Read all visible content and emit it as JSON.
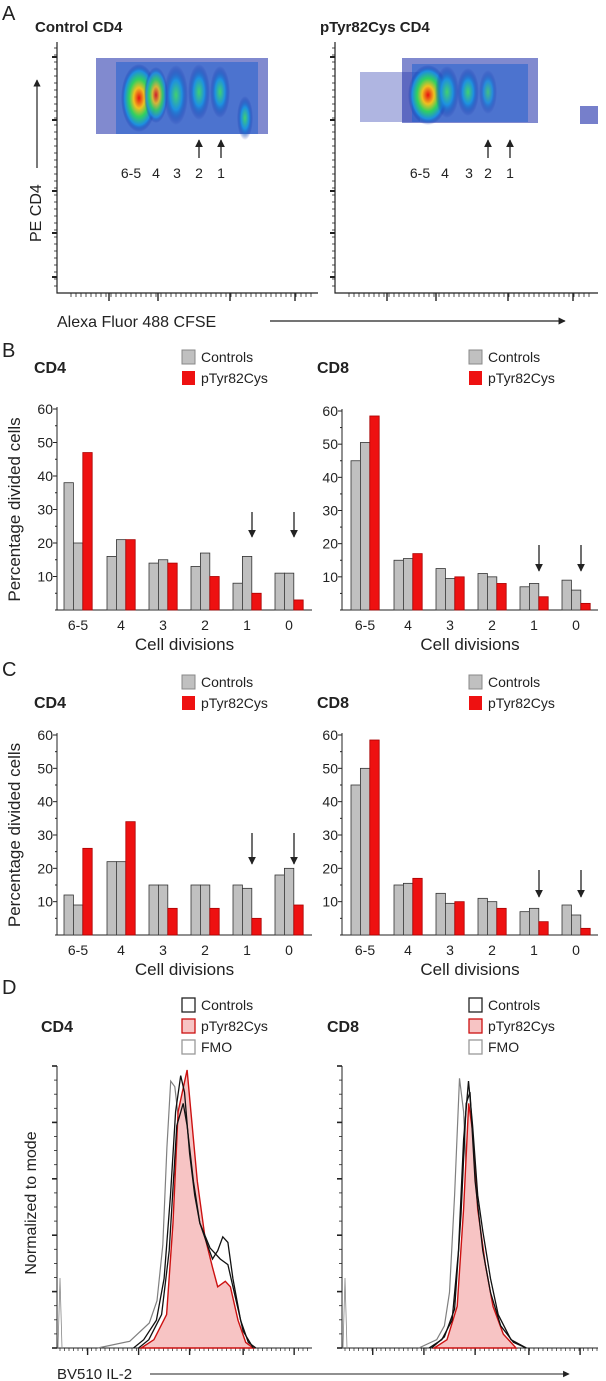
{
  "panel_letters": {
    "a": "A",
    "b": "B",
    "c": "C",
    "d": "D"
  },
  "colors": {
    "control": "#c0c0c0",
    "mutant": "#ee1111",
    "fmo": "#808080",
    "mutant_fill": "#f7c4c4",
    "mutant_line": "#cc1111",
    "axis": "#222222"
  },
  "panel_a": {
    "left_title": "Control CD4",
    "right_title": "pTyr82Cys CD4",
    "ylabel": "PE CD4",
    "xlabel": "Alexa Fluor 488 CFSE",
    "left_peaks": [
      "6-5",
      "4",
      "3",
      "2",
      "1"
    ],
    "right_peaks": [
      "6-5",
      "4",
      "3",
      "2",
      "1"
    ]
  },
  "chart_data": [
    {
      "id": "B-CD4",
      "type": "bar",
      "title": "CD4",
      "xlabel": "Cell divisions",
      "ylabel": "Percentage  divided cells",
      "ylim": [
        0,
        60
      ],
      "yticks": [
        "10",
        "20",
        "30",
        "40",
        "50",
        "60"
      ],
      "categories": [
        "6-5",
        "4",
        "3",
        "2",
        "1",
        "0"
      ],
      "legend": [
        "Controls",
        "pTyr82Cys"
      ],
      "legend_placement": "top-right",
      "series": [
        {
          "name": "Controls",
          "values": [
            38,
            16,
            14,
            13,
            8,
            11
          ]
        },
        {
          "name": "Controls",
          "values": [
            20,
            21,
            15,
            17,
            16,
            11
          ]
        },
        {
          "name": "pTyr82Cys",
          "values": [
            47,
            21,
            14,
            10,
            5,
            3
          ]
        }
      ],
      "arrows_at": [
        "1",
        "0"
      ]
    },
    {
      "id": "B-CD8",
      "type": "bar",
      "title": "CD8",
      "xlabel": "Cell divisions",
      "ylabel": "",
      "ylim": [
        0,
        60
      ],
      "yticks": [
        "10",
        "20",
        "30",
        "40",
        "50",
        "60"
      ],
      "categories": [
        "6-5",
        "4",
        "3",
        "2",
        "1",
        "0"
      ],
      "legend": [
        "Controls",
        "pTyr82Cys"
      ],
      "legend_placement": "top-right",
      "series": [
        {
          "name": "Controls",
          "values": [
            45,
            15,
            12.5,
            11,
            7,
            9
          ]
        },
        {
          "name": "Controls",
          "values": [
            50.5,
            15.5,
            9.5,
            10,
            8,
            6
          ]
        },
        {
          "name": "pTyr82Cys",
          "values": [
            58.5,
            17,
            10,
            8,
            4,
            2
          ]
        }
      ],
      "arrows_at": [
        "1",
        "0"
      ]
    },
    {
      "id": "C-CD4",
      "type": "bar",
      "title": "CD4",
      "xlabel": "Cell divisions",
      "ylabel": "Percentage  divided cells",
      "ylim": [
        0,
        60
      ],
      "yticks": [
        "10",
        "20",
        "30",
        "40",
        "50",
        "60"
      ],
      "categories": [
        "6-5",
        "4",
        "3",
        "2",
        "1",
        "0"
      ],
      "legend": [
        "Controls",
        "pTyr82Cys"
      ],
      "legend_placement": "top-right",
      "series": [
        {
          "name": "Controls",
          "values": [
            12,
            22,
            15,
            15,
            15,
            18
          ]
        },
        {
          "name": "Controls",
          "values": [
            9,
            22,
            15,
            15,
            14,
            20
          ]
        },
        {
          "name": "pTyr82Cys",
          "values": [
            26,
            34,
            8,
            8,
            5,
            9
          ]
        }
      ],
      "arrows_at": [
        "1",
        "0"
      ]
    },
    {
      "id": "C-CD8",
      "type": "bar",
      "title": "CD8",
      "xlabel": "Cell divisions",
      "ylabel": "",
      "ylim": [
        0,
        60
      ],
      "yticks": [
        "10",
        "20",
        "30",
        "40",
        "50",
        "60"
      ],
      "categories": [
        "6-5",
        "4",
        "3",
        "2",
        "1",
        "0"
      ],
      "legend": [
        "Controls",
        "pTyr82Cys"
      ],
      "legend_placement": "top-right",
      "series": [
        {
          "name": "Controls",
          "values": [
            45,
            15,
            12.5,
            11,
            7,
            9
          ]
        },
        {
          "name": "Controls",
          "values": [
            50,
            15.5,
            9.5,
            10,
            8,
            6
          ]
        },
        {
          "name": "pTyr82Cys",
          "values": [
            58.5,
            17,
            10,
            8,
            4,
            2
          ]
        }
      ],
      "arrows_at": [
        "1",
        "0"
      ]
    },
    {
      "id": "D-CD4",
      "type": "line",
      "title": "CD4",
      "xlabel": "BV510 IL-2",
      "ylabel": "Normalized to mode",
      "xlim": [
        0,
        100
      ],
      "ylim": [
        0,
        100
      ],
      "legend": [
        "Controls",
        "pTyr82Cys",
        "FMO"
      ],
      "legend_placement": "top-right",
      "series": [
        {
          "name": "FMO",
          "style": "fmo",
          "points": [
            [
              16,
              0
            ],
            [
              28.5,
              2.4
            ],
            [
              36.2,
              9
            ],
            [
              39.2,
              17
            ],
            [
              41.5,
              37
            ],
            [
              43.1,
              72
            ],
            [
              44.6,
              96
            ],
            [
              46.2,
              94
            ],
            [
              47.7,
              82
            ],
            [
              49.2,
              60
            ],
            [
              50.8,
              37
            ],
            [
              53.1,
              19
            ],
            [
              56.2,
              13
            ],
            [
              60,
              11
            ],
            [
              61.5,
              8
            ],
            [
              66.9,
              2.4
            ],
            [
              73,
              0
            ]
          ]
        },
        {
          "name": "pTyr82Cys",
          "style": "mutant",
          "points": [
            [
              33,
              0
            ],
            [
              38,
              3
            ],
            [
              43,
              12
            ],
            [
              45.5,
              45
            ],
            [
              47.5,
              85
            ],
            [
              51,
              100
            ],
            [
              52.5,
              85
            ],
            [
              55,
              60
            ],
            [
              58,
              40
            ],
            [
              61,
              29
            ],
            [
              63,
              22
            ],
            [
              66,
              24
            ],
            [
              68,
              22
            ],
            [
              71,
              10
            ],
            [
              74,
              2
            ],
            [
              77,
              0
            ]
          ]
        },
        {
          "name": "Controls",
          "style": "control",
          "points": [
            [
              30,
              0
            ],
            [
              34,
              3
            ],
            [
              39,
              10
            ],
            [
              42,
              25
            ],
            [
              44.5,
              55
            ],
            [
              46.5,
              85
            ],
            [
              48.5,
              98
            ],
            [
              50,
              92
            ],
            [
              52,
              70
            ],
            [
              54,
              55
            ],
            [
              56,
              45
            ],
            [
              59,
              37
            ],
            [
              61,
              32
            ],
            [
              63,
              35
            ],
            [
              65,
              40
            ],
            [
              67,
              38
            ],
            [
              69,
              25
            ],
            [
              72,
              10
            ],
            [
              75,
              2
            ],
            [
              78,
              0
            ]
          ]
        },
        {
          "name": "Controls",
          "style": "control",
          "points": [
            [
              32,
              0
            ],
            [
              36,
              3
            ],
            [
              41,
              12
            ],
            [
              44,
              35
            ],
            [
              47,
              80
            ],
            [
              49.5,
              88
            ],
            [
              51,
              80
            ],
            [
              53.5,
              60
            ],
            [
              56,
              45
            ],
            [
              60,
              36
            ],
            [
              64,
              32
            ],
            [
              67,
              30
            ],
            [
              70,
              18
            ],
            [
              73,
              6
            ],
            [
              77,
              0
            ]
          ]
        }
      ]
    },
    {
      "id": "D-CD8",
      "type": "line",
      "title": "CD8",
      "xlabel": "",
      "ylabel": "",
      "xlim": [
        0,
        100
      ],
      "ylim": [
        0,
        100
      ],
      "legend": [
        "Controls",
        "pTyr82Cys",
        "FMO"
      ],
      "legend_placement": "top-right",
      "series": [
        {
          "name": "FMO",
          "style": "fmo",
          "points": [
            [
              30,
              0
            ],
            [
              37,
              3
            ],
            [
              40,
              8
            ],
            [
              42,
              20
            ],
            [
              44,
              55
            ],
            [
              45.9,
              97
            ],
            [
              47.5,
              85
            ],
            [
              49,
              55
            ],
            [
              50.5,
              30
            ],
            [
              53,
              12
            ],
            [
              57,
              4
            ],
            [
              62,
              0
            ]
          ]
        },
        {
          "name": "pTyr82Cys",
          "style": "mutant",
          "points": [
            [
              36,
              0
            ],
            [
              41,
              3
            ],
            [
              45,
              15
            ],
            [
              47.5,
              50
            ],
            [
              49.5,
              88
            ],
            [
              51,
              78
            ],
            [
              53,
              50
            ],
            [
              56,
              30
            ],
            [
              59,
              15
            ],
            [
              63,
              5
            ],
            [
              68,
              0
            ]
          ]
        },
        {
          "name": "Controls",
          "style": "control",
          "points": [
            [
              34,
              0
            ],
            [
              39,
              3
            ],
            [
              43,
              10
            ],
            [
              45.5,
              35
            ],
            [
              47.5,
              75
            ],
            [
              49.4,
              96
            ],
            [
              51,
              80
            ],
            [
              53,
              55
            ],
            [
              55,
              42
            ],
            [
              58,
              25
            ],
            [
              61,
              12
            ],
            [
              66,
              3
            ],
            [
              72,
              0
            ]
          ]
        },
        {
          "name": "Controls",
          "style": "control",
          "points": [
            [
              35,
              0
            ],
            [
              40,
              4
            ],
            [
              44,
              14
            ],
            [
              46.5,
              48
            ],
            [
              48.5,
              88
            ],
            [
              50,
              92
            ],
            [
              52,
              60
            ],
            [
              55,
              35
            ],
            [
              58,
              20
            ],
            [
              62,
              8
            ],
            [
              67,
              2
            ],
            [
              72,
              0
            ]
          ]
        }
      ]
    }
  ]
}
